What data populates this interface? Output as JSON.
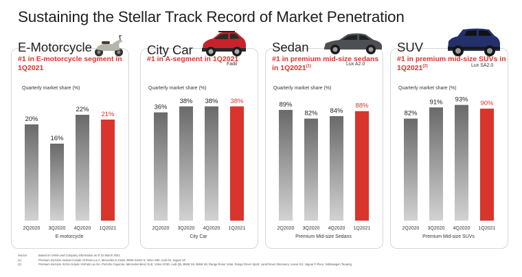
{
  "title": "Sustaining the Stellar Track Record of Market Penetration",
  "colors": {
    "bar_gray": "#7a7a7a",
    "bar_highlight": "#d9352c",
    "headline": "#d9352c"
  },
  "panels": [
    {
      "heading": "E-Motorcycle",
      "headline": "#1 in E-motorcycle segment in 1Q2021",
      "headline_note": "",
      "model": "",
      "metric": "Quarterly market share (%)",
      "category": "E-motorcycle",
      "vehicle_icon": "scooter-icon"
    },
    {
      "heading": "City Car",
      "headline": "#1 in A-segment in 1Q2021",
      "headline_note": "",
      "model": "Fadil",
      "metric": "Quarterly market share (%)",
      "category": "City Car",
      "vehicle_icon": "hatchback-icon"
    },
    {
      "heading": "Sedan",
      "headline": "#1 in premium mid-size sedans in 1Q2021",
      "headline_note": "(1)",
      "model": "Lux A2.0",
      "metric": "Quarterly market share (%)",
      "category": "Premium Mid-size Sedans",
      "vehicle_icon": "sedan-icon"
    },
    {
      "heading": "SUV",
      "headline": "#1 in premium mid-size SUVs in 1Q2021",
      "headline_note": "(2)",
      "model": "Lux SA2.0",
      "metric": "Quarterly market share (%)",
      "category": "Premium Mid-size SUVs",
      "vehicle_icon": "suv-icon"
    }
  ],
  "chart_data": [
    {
      "type": "bar",
      "title": "E-motorcycle",
      "ylabel": "Quarterly market share (%)",
      "categories": [
        "2Q2020",
        "3Q2020",
        "4Q2020",
        "1Q2021"
      ],
      "values": [
        20,
        16,
        22,
        21
      ],
      "labels": [
        "20%",
        "16%",
        "22%",
        "21%"
      ],
      "highlight_index": 3,
      "ylim": [
        0,
        30
      ]
    },
    {
      "type": "bar",
      "title": "City Car",
      "ylabel": "Quarterly market share (%)",
      "categories": [
        "2Q2020",
        "3Q2020",
        "4Q2020",
        "1Q2021"
      ],
      "values": [
        36,
        38,
        38,
        38
      ],
      "labels": [
        "36%",
        "38%",
        "38%",
        "38%"
      ],
      "highlight_index": 3,
      "ylim": [
        0,
        48
      ]
    },
    {
      "type": "bar",
      "title": "Premium Mid-size Sedans",
      "ylabel": "Quarterly market share (%)",
      "categories": [
        "2Q2020",
        "3Q2020",
        "4Q2020",
        "1Q2021"
      ],
      "values": [
        89,
        82,
        84,
        88
      ],
      "labels": [
        "89%",
        "82%",
        "84%",
        "88%"
      ],
      "highlight_index": 3,
      "ylim": [
        0,
        116
      ]
    },
    {
      "type": "bar",
      "title": "Premium Mid-size SUVs",
      "ylabel": "Quarterly market share (%)",
      "categories": [
        "2Q2020",
        "3Q2020",
        "4Q2020",
        "1Q2021"
      ],
      "values": [
        82,
        91,
        93,
        90
      ],
      "labels": [
        "82%",
        "91%",
        "93%",
        "90%"
      ],
      "highlight_index": 3,
      "ylim": [
        0,
        116
      ]
    }
  ],
  "footnotes": [
    {
      "key": "Source",
      "text": "Based on VAMA and Company information as of 31 March 2021"
    },
    {
      "key": "(1)",
      "text": "Premium mid-size sedans include VinFast Lux A, Mercedes E-Class, BMW Series 5, Volvo S90, Audi A6, Jaguar XF"
    },
    {
      "key": "(2)",
      "text": "Premium mid-size SUVs include VinFast Lux SA, Porsche Cayenne, Mercedes-Benz GLE, Volvo XC90, Audi Q5, BMW X5, BMW X6, Range Rover Velar, Range Rover Sport, Land Rover Discovery, Lexus GX, Jaguar F-Pace, Volkswagen Touareg"
    }
  ]
}
